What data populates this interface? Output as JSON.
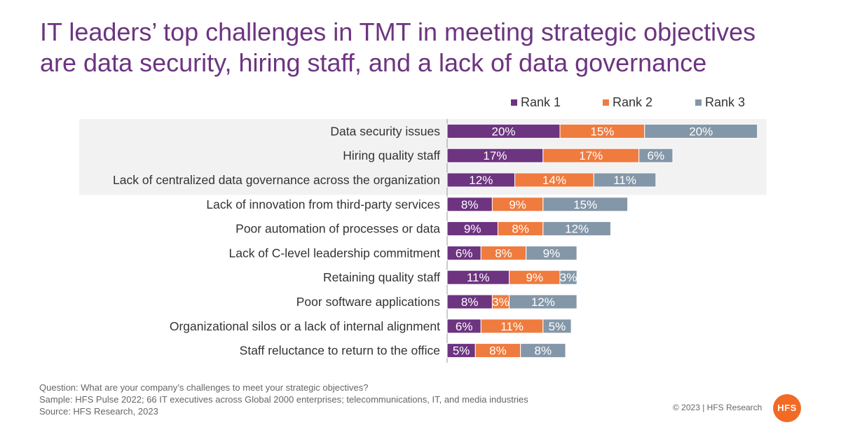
{
  "title_line1": "IT leaders’ top challenges in TMT in meeting strategic objectives",
  "title_line2": "are data security, hiring staff, and a lack of data governance",
  "colors": {
    "rank1": "#6d3480",
    "rank2": "#ef7b3e",
    "rank3": "#8497a8",
    "highlight": "#f2f2f2",
    "title": "#6d3480"
  },
  "chart_data": {
    "type": "bar",
    "orientation": "horizontal",
    "stacked": true,
    "categories": [
      "Data security issues",
      "Hiring quality staff",
      "Lack of centralized data governance across the organization",
      "Lack of innovation from third-party services",
      "Poor automation of processes or data",
      "Lack of C-level leadership commitment",
      "Retaining quality staff",
      "Poor software applications",
      "Organizational silos or a lack of internal alignment",
      "Staff reluctance to return to the office"
    ],
    "series": [
      {
        "name": "Rank 1",
        "values": [
          20,
          17,
          12,
          8,
          9,
          6,
          11,
          8,
          6,
          5
        ]
      },
      {
        "name": "Rank 2",
        "values": [
          15,
          17,
          14,
          9,
          8,
          8,
          9,
          3,
          11,
          8
        ]
      },
      {
        "name": "Rank 3",
        "values": [
          20,
          6,
          11,
          15,
          12,
          9,
          3,
          12,
          5,
          8
        ]
      }
    ],
    "value_suffix": "%",
    "highlighted_categories": [
      0,
      1,
      2
    ],
    "legend_position": "top-right",
    "grid": false
  },
  "footer": {
    "question": "Question: What are your company’s challenges to meet your strategic objectives?",
    "sample": "Sample: HFS Pulse 2022; 66 IT executives across Global 2000 enterprises; telecommunications, IT, and media industries",
    "source": "Source: HFS Research, 2023"
  },
  "copyright": "© 2023 | HFS Research",
  "logo_text": "HFS"
}
